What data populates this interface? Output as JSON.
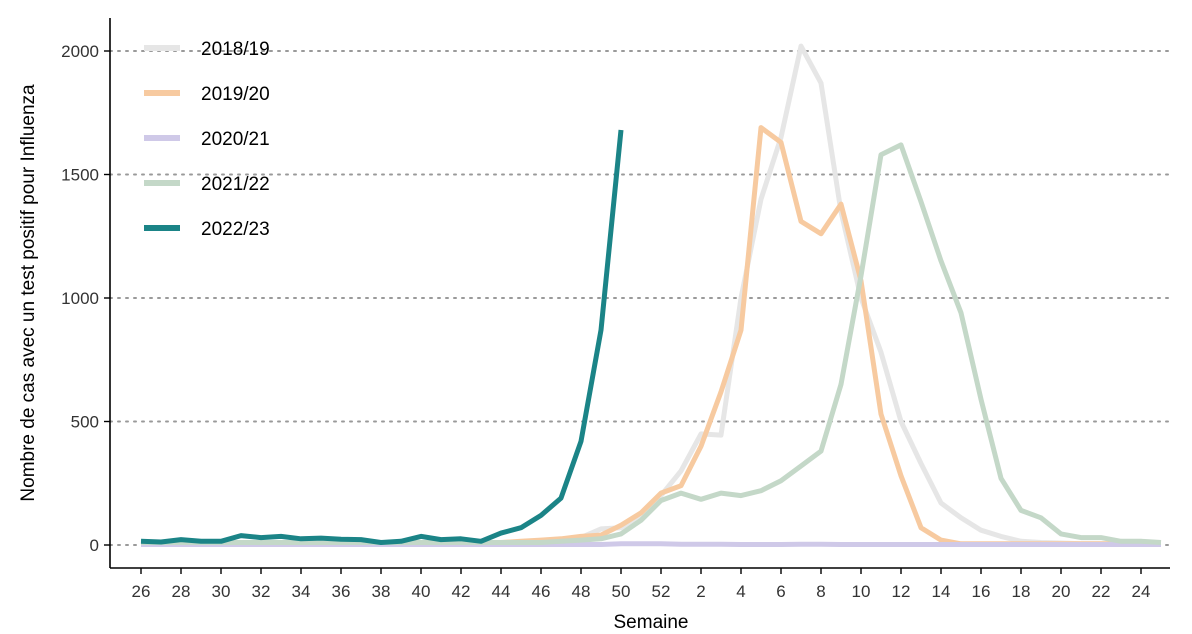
{
  "chart_data": {
    "type": "line",
    "title": "",
    "xlabel": "Semaine",
    "ylabel": "Nombre de cas avec un test positif pour Influenza",
    "ylim": [
      0,
      2050
    ],
    "yticks": [
      0,
      500,
      1000,
      1500,
      2000
    ],
    "grid": "horizontal-dotted",
    "legend_position": "top-left",
    "x_categories": [
      "26",
      "27",
      "28",
      "29",
      "30",
      "31",
      "32",
      "33",
      "34",
      "35",
      "36",
      "37",
      "38",
      "39",
      "40",
      "41",
      "42",
      "43",
      "44",
      "45",
      "46",
      "47",
      "48",
      "49",
      "50",
      "51",
      "52",
      "1",
      "2",
      "3",
      "4",
      "5",
      "6",
      "7",
      "8",
      "9",
      "10",
      "11",
      "12",
      "13",
      "14",
      "15",
      "16",
      "17",
      "18",
      "19",
      "20",
      "21",
      "22",
      "23",
      "24",
      "25"
    ],
    "x_tick_labels": [
      "26",
      "28",
      "30",
      "32",
      "34",
      "36",
      "38",
      "40",
      "42",
      "44",
      "46",
      "48",
      "50",
      "52",
      "2",
      "4",
      "6",
      "8",
      "10",
      "12",
      "14",
      "16",
      "18",
      "20",
      "22",
      "24"
    ],
    "series": [
      {
        "name": "2018/19",
        "color": "#e6e6e6",
        "values": [
          5,
          5,
          5,
          5,
          5,
          5,
          5,
          5,
          5,
          5,
          5,
          5,
          5,
          5,
          5,
          5,
          5,
          5,
          8,
          10,
          15,
          20,
          30,
          65,
          70,
          110,
          200,
          300,
          450,
          445,
          1000,
          1400,
          1650,
          2020,
          1870,
          1350,
          1000,
          780,
          500,
          330,
          170,
          110,
          60,
          35,
          15,
          10,
          8,
          5,
          5,
          5,
          5,
          5
        ]
      },
      {
        "name": "2019/20",
        "color": "#f7caa0",
        "values": [
          5,
          5,
          5,
          5,
          5,
          5,
          5,
          5,
          5,
          5,
          5,
          5,
          5,
          5,
          5,
          5,
          5,
          5,
          10,
          15,
          20,
          25,
          35,
          40,
          80,
          130,
          210,
          240,
          400,
          620,
          870,
          1690,
          1630,
          1310,
          1260,
          1380,
          1070,
          530,
          280,
          70,
          20,
          5,
          5,
          5,
          5,
          5,
          5,
          5,
          5,
          5,
          5,
          5
        ]
      },
      {
        "name": "2020/21",
        "color": "#cfc9e8",
        "values": [
          2,
          2,
          2,
          2,
          2,
          2,
          2,
          2,
          2,
          2,
          2,
          2,
          2,
          2,
          2,
          2,
          2,
          2,
          2,
          2,
          2,
          2,
          2,
          2,
          5,
          5,
          5,
          3,
          3,
          3,
          2,
          2,
          2,
          3,
          3,
          2,
          2,
          2,
          2,
          2,
          2,
          2,
          2,
          2,
          2,
          2,
          2,
          2,
          2,
          2,
          2,
          2
        ]
      },
      {
        "name": "2021/22",
        "color": "#c4d8c8",
        "values": [
          10,
          10,
          10,
          10,
          10,
          10,
          10,
          10,
          10,
          10,
          10,
          10,
          10,
          10,
          10,
          10,
          10,
          10,
          10,
          10,
          10,
          15,
          20,
          25,
          45,
          100,
          180,
          210,
          185,
          210,
          200,
          220,
          260,
          320,
          380,
          650,
          1090,
          1580,
          1620,
          1390,
          1150,
          940,
          590,
          270,
          140,
          110,
          45,
          30,
          30,
          15,
          15,
          10
        ]
      },
      {
        "name": "2022/23",
        "color": "#1b8487",
        "values": [
          15,
          12,
          22,
          15,
          15,
          38,
          30,
          35,
          25,
          28,
          23,
          22,
          10,
          15,
          35,
          22,
          25,
          15,
          48,
          70,
          120,
          190,
          420,
          870,
          1680,
          null,
          null,
          null,
          null,
          null,
          null,
          null,
          null,
          null,
          null,
          null,
          null,
          null,
          null,
          null,
          null,
          null,
          null,
          null,
          null,
          null,
          null,
          null,
          null,
          null,
          null,
          null
        ]
      }
    ]
  }
}
